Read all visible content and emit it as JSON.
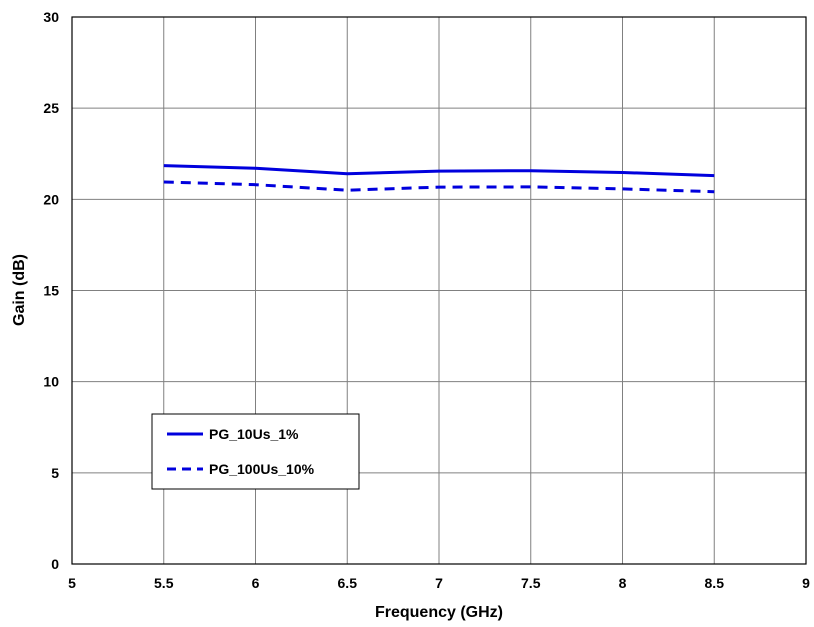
{
  "chart_data": {
    "type": "line",
    "title": "",
    "xlabel": "Frequency (GHz)",
    "ylabel": "Gain (dB)",
    "xlim": [
      5,
      9
    ],
    "ylim": [
      0,
      30
    ],
    "xticks": [
      5,
      5.5,
      6,
      6.5,
      7,
      7.5,
      8,
      8.5,
      9
    ],
    "yticks": [
      0,
      5,
      10,
      15,
      20,
      25,
      30
    ],
    "xtick_labels": [
      "5",
      "5.5",
      "6",
      "6.5",
      "7",
      "7.5",
      "8",
      "8.5",
      "9"
    ],
    "ytick_labels": [
      "0",
      "5",
      "10",
      "15",
      "20",
      "25",
      "30"
    ],
    "grid": true,
    "legend_position": "lower-left",
    "series": [
      {
        "name": "PG_10Us_1%",
        "style": "solid",
        "color": "#0000dd",
        "x": [
          5.5,
          6,
          6.5,
          7,
          7.5,
          8,
          8.5
        ],
        "y": [
          21.85,
          21.7,
          21.4,
          21.55,
          21.57,
          21.47,
          21.3
        ]
      },
      {
        "name": "PG_100Us_10%",
        "style": "dashed",
        "color": "#0000dd",
        "x": [
          5.5,
          6,
          6.5,
          7,
          7.5,
          8,
          8.5
        ],
        "y": [
          20.95,
          20.8,
          20.5,
          20.67,
          20.68,
          20.57,
          20.42
        ]
      }
    ]
  }
}
